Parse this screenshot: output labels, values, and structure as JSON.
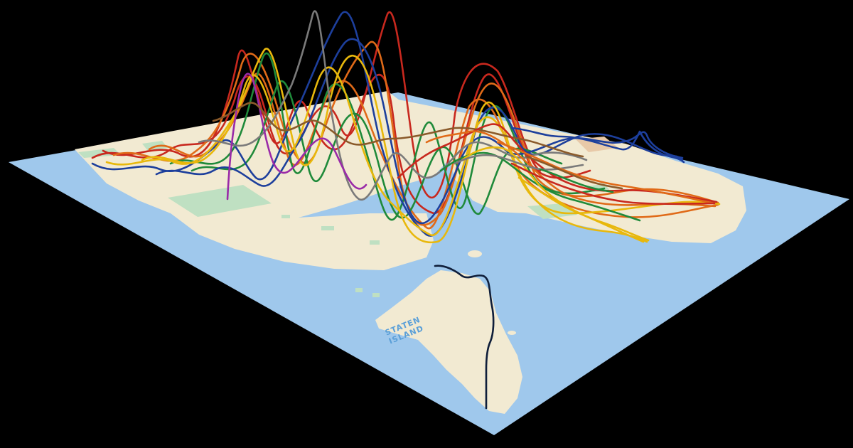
{
  "map": {
    "label_line1": "STATEN",
    "label_line2": "ISLAND",
    "colors": {
      "background": "#000000",
      "water": "#9fc8ec",
      "land": "#f2ead2",
      "park": "#bfe0c2",
      "airport": "#e8c9a8",
      "label": "#5a9fd8"
    }
  },
  "routes": [
    {
      "id": "manhattan-red-1",
      "color": "#c8281e"
    },
    {
      "id": "manhattan-red-2",
      "color": "#c8281e"
    },
    {
      "id": "manhattan-orange-1",
      "color": "#e06a18"
    },
    {
      "id": "manhattan-orange-2",
      "color": "#e06a18"
    },
    {
      "id": "manhattan-green-1",
      "color": "#1f8a3a"
    },
    {
      "id": "manhattan-green-2",
      "color": "#1f8a3a"
    },
    {
      "id": "manhattan-blue-1",
      "color": "#1d3f9c"
    },
    {
      "id": "manhattan-blue-2",
      "color": "#1d3f9c"
    },
    {
      "id": "manhattan-yellow-1",
      "color": "#e8b80c"
    },
    {
      "id": "manhattan-yellow-2",
      "color": "#e8b80c"
    },
    {
      "id": "manhattan-gray",
      "color": "#7a7a7a"
    },
    {
      "id": "manhattan-purple",
      "color": "#9a2aa8"
    },
    {
      "id": "manhattan-brown",
      "color": "#8a5a2a"
    },
    {
      "id": "brooklyn-red",
      "color": "#c8281e"
    },
    {
      "id": "brooklyn-orange",
      "color": "#e06a18"
    },
    {
      "id": "brooklyn-green",
      "color": "#1f8a3a"
    },
    {
      "id": "brooklyn-yellow",
      "color": "#e8b80c"
    },
    {
      "id": "brooklyn-gray",
      "color": "#7a7a7a"
    },
    {
      "id": "queens-blue",
      "color": "#1d3f9c"
    },
    {
      "id": "queens-orange",
      "color": "#e06a18"
    },
    {
      "id": "queens-red",
      "color": "#c8281e"
    },
    {
      "id": "queens-yellow",
      "color": "#e8b80c"
    },
    {
      "id": "queens-brown",
      "color": "#8a5a2a"
    },
    {
      "id": "queens-green",
      "color": "#1f8a3a"
    },
    {
      "id": "staten-island-railway",
      "color": "#0f1e3a"
    }
  ]
}
